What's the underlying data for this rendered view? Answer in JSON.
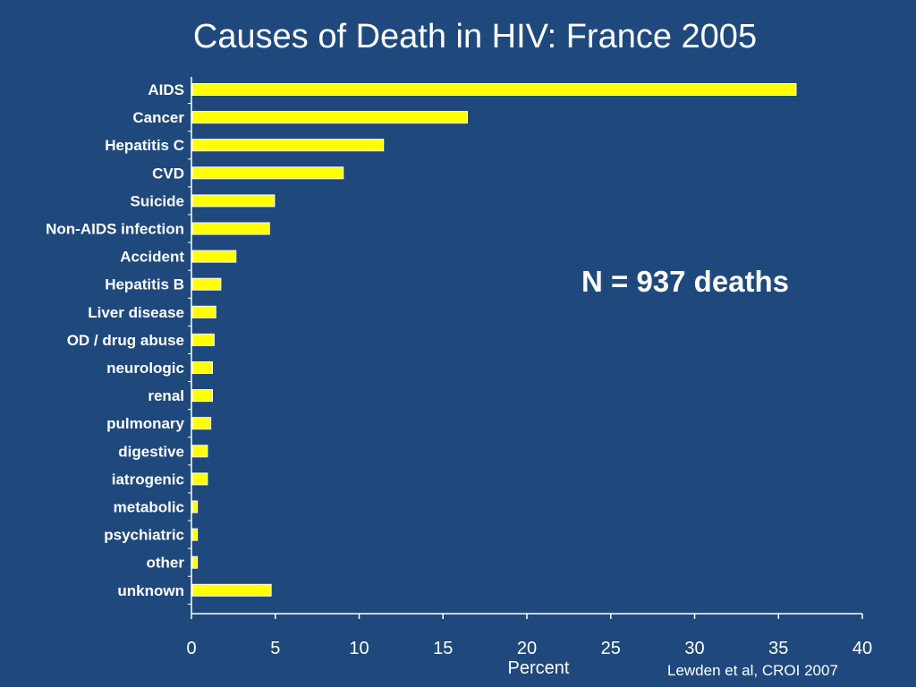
{
  "title": "Causes of Death in HIV: France 2005",
  "annotation": "N = 937 deaths",
  "source": "Lewden et al, CROI 2007",
  "colors": {
    "background": "#1f497d",
    "bar": "#ffff00",
    "text": "#ffffff"
  },
  "chart_data": {
    "type": "bar",
    "orientation": "horizontal",
    "categories": [
      "AIDS",
      "Cancer",
      "Hepatitis C",
      "CVD",
      "Suicide",
      "Non-AIDS infection",
      "Accident",
      "Hepatitis B",
      "Liver disease",
      "OD / drug abuse",
      "neurologic",
      "renal",
      "pulmonary",
      "digestive",
      "iatrogenic",
      "metabolic",
      "psychiatric",
      "other",
      "unknown"
    ],
    "values": [
      36,
      16.4,
      11.4,
      9,
      4.9,
      4.6,
      2.6,
      1.7,
      1.4,
      1.3,
      1.2,
      1.2,
      1.1,
      0.9,
      0.9,
      0.3,
      0.3,
      0.3,
      4.7
    ],
    "xlabel": "Percent",
    "ylabel": "",
    "xlim": [
      0,
      40
    ],
    "xticks": [
      0,
      5,
      10,
      15,
      20,
      25,
      30,
      35,
      40
    ],
    "grid": false,
    "legend": "none"
  }
}
